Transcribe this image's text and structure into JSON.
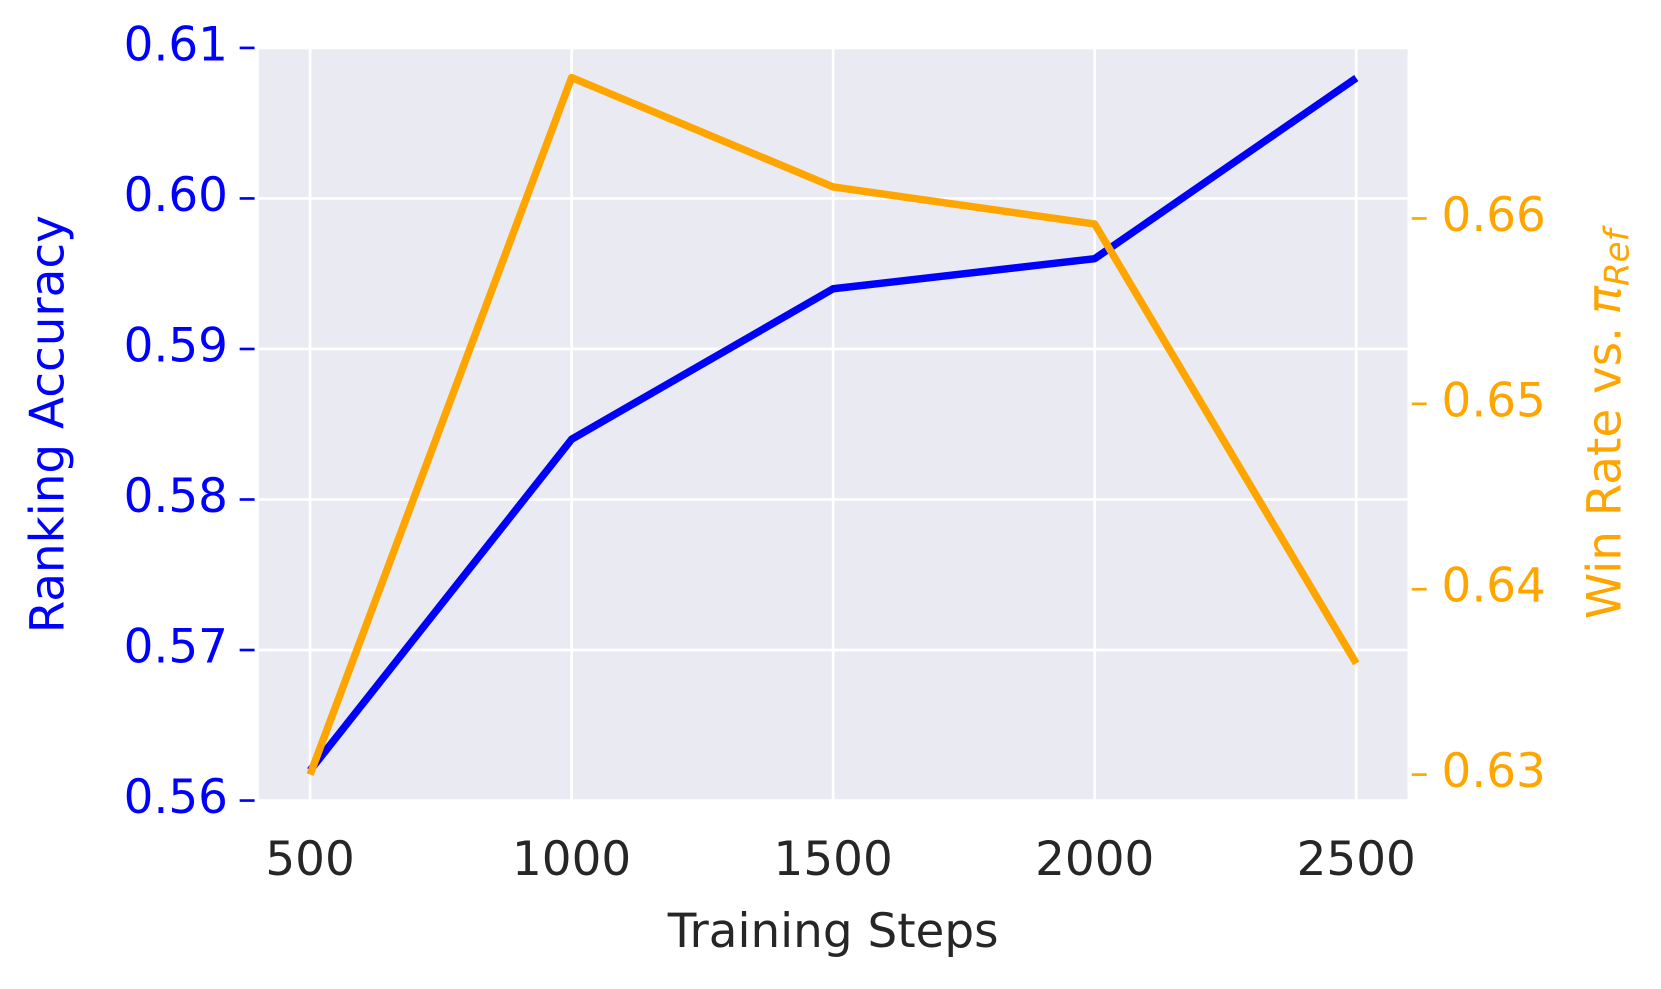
{
  "chart_data": {
    "type": "line",
    "xlabel": "Training Steps",
    "ylabel": "Ranking Accuracy",
    "y2label": "Win Rate vs.",
    "y2label_math": {
      "symbol": "π",
      "subscript": "Ref"
    },
    "x": [
      500,
      1000,
      1500,
      2000,
      2500
    ],
    "xlim": [
      402,
      2598
    ],
    "xticks": [
      500,
      1000,
      1500,
      2000,
      2500
    ],
    "ylim": [
      0.56,
      0.61
    ],
    "yticks": [
      0.56,
      0.57,
      0.58,
      0.59,
      {
        "value": 0.6,
        "label": "0.60"
      },
      0.61
    ],
    "y2lim": [
      0.6286,
      0.6692
    ],
    "y2ticks": [
      0.63,
      0.64,
      0.65,
      0.66
    ],
    "ycolor": "#0000ff",
    "y2color": "#ffa500",
    "background": "#eaeaf2",
    "grid": true,
    "series": [
      {
        "color": "#0000ff",
        "values": [
          0.562,
          0.584,
          0.594,
          0.596,
          0.608
        ]
      },
      {
        "color": "#ffa500",
        "axis": "y2",
        "values": [
          0.63,
          0.6676,
          0.6617,
          0.6597,
          0.636
        ]
      }
    ]
  }
}
